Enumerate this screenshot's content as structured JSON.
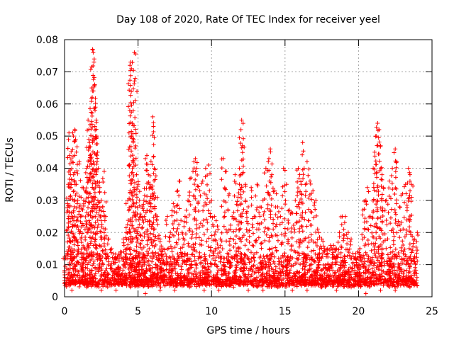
{
  "chart_data": {
    "type": "scatter",
    "title": "Day 108 of 2020, Rate Of TEC Index for receiver yeel",
    "xlabel": "GPS time / hours",
    "ylabel": "ROTI / TECUs",
    "xlim": [
      0,
      25
    ],
    "ylim": [
      0,
      0.08
    ],
    "x_ticks": [
      0,
      5,
      10,
      15,
      20,
      25
    ],
    "x_tick_labels": [
      "0",
      "5",
      "10",
      "15",
      "20",
      "25"
    ],
    "y_ticks": [
      0,
      0.01,
      0.02,
      0.03,
      0.04,
      0.05,
      0.06,
      0.07,
      0.08
    ],
    "y_tick_labels": [
      "0",
      "0.01",
      "0.02",
      "0.03",
      "0.04",
      "0.05",
      "0.06",
      "0.07",
      "0.08"
    ],
    "grid": true,
    "marker": "+",
    "color": "#ff0000",
    "series": [
      {
        "name": "ROTI",
        "points": [
          [
            0.0,
            0.005
          ],
          [
            0.1,
            0.012
          ],
          [
            0.2,
            0.029
          ],
          [
            0.25,
            0.035
          ],
          [
            0.3,
            0.051
          ],
          [
            0.35,
            0.044
          ],
          [
            0.4,
            0.038
          ],
          [
            0.5,
            0.025
          ],
          [
            0.55,
            0.051
          ],
          [
            0.6,
            0.05
          ],
          [
            0.7,
            0.052
          ],
          [
            0.75,
            0.049
          ],
          [
            0.8,
            0.035
          ],
          [
            0.9,
            0.03
          ],
          [
            1.0,
            0.042
          ],
          [
            1.1,
            0.025
          ],
          [
            1.2,
            0.034
          ],
          [
            1.3,
            0.03
          ],
          [
            1.4,
            0.033
          ],
          [
            1.5,
            0.04
          ],
          [
            1.6,
            0.055
          ],
          [
            1.65,
            0.049
          ],
          [
            1.7,
            0.048
          ],
          [
            1.75,
            0.042
          ],
          [
            1.8,
            0.043
          ],
          [
            1.85,
            0.065
          ],
          [
            1.9,
            0.077
          ],
          [
            1.95,
            0.076
          ],
          [
            2.0,
            0.073
          ],
          [
            2.05,
            0.066
          ],
          [
            2.1,
            0.059
          ],
          [
            2.15,
            0.055
          ],
          [
            2.2,
            0.05
          ],
          [
            2.3,
            0.04
          ],
          [
            2.4,
            0.034
          ],
          [
            2.5,
            0.03
          ],
          [
            2.6,
            0.028
          ],
          [
            2.7,
            0.039
          ],
          [
            2.8,
            0.025
          ],
          [
            3.0,
            0.018
          ],
          [
            3.2,
            0.015
          ],
          [
            3.5,
            0.012
          ],
          [
            3.8,
            0.014
          ],
          [
            4.0,
            0.018
          ],
          [
            4.2,
            0.02
          ],
          [
            4.3,
            0.03
          ],
          [
            4.4,
            0.041
          ],
          [
            4.45,
            0.072
          ],
          [
            4.5,
            0.073
          ],
          [
            4.55,
            0.071
          ],
          [
            4.6,
            0.054
          ],
          [
            4.7,
            0.049
          ],
          [
            4.75,
            0.076
          ],
          [
            4.8,
            0.068
          ],
          [
            4.9,
            0.038
          ],
          [
            5.0,
            0.035
          ],
          [
            5.1,
            0.03
          ],
          [
            5.2,
            0.025
          ],
          [
            5.3,
            0.028
          ],
          [
            5.4,
            0.03
          ],
          [
            5.5,
            0.043
          ],
          [
            5.6,
            0.044
          ],
          [
            5.7,
            0.038
          ],
          [
            5.8,
            0.035
          ],
          [
            5.9,
            0.034
          ],
          [
            6.0,
            0.056
          ],
          [
            6.05,
            0.053
          ],
          [
            6.1,
            0.04
          ],
          [
            6.2,
            0.031
          ],
          [
            6.3,
            0.025
          ],
          [
            6.5,
            0.018
          ],
          [
            6.7,
            0.015
          ],
          [
            7.0,
            0.025
          ],
          [
            7.2,
            0.02
          ],
          [
            7.4,
            0.029
          ],
          [
            7.5,
            0.028
          ],
          [
            7.7,
            0.033
          ],
          [
            7.8,
            0.036
          ],
          [
            8.0,
            0.02
          ],
          [
            8.2,
            0.025
          ],
          [
            8.4,
            0.03
          ],
          [
            8.6,
            0.037
          ],
          [
            8.8,
            0.042
          ],
          [
            8.9,
            0.043
          ],
          [
            9.0,
            0.04
          ],
          [
            9.2,
            0.033
          ],
          [
            9.4,
            0.036
          ],
          [
            9.6,
            0.04
          ],
          [
            9.8,
            0.041
          ],
          [
            10.0,
            0.03
          ],
          [
            10.2,
            0.025
          ],
          [
            10.4,
            0.022
          ],
          [
            10.6,
            0.018
          ],
          [
            10.8,
            0.043
          ],
          [
            11.0,
            0.039
          ],
          [
            11.2,
            0.032
          ],
          [
            11.4,
            0.025
          ],
          [
            11.6,
            0.038
          ],
          [
            11.8,
            0.031
          ],
          [
            11.9,
            0.035
          ],
          [
            12.0,
            0.052
          ],
          [
            12.05,
            0.055
          ],
          [
            12.1,
            0.047
          ],
          [
            12.3,
            0.035
          ],
          [
            12.5,
            0.028
          ],
          [
            12.7,
            0.034
          ],
          [
            12.9,
            0.025
          ],
          [
            13.1,
            0.035
          ],
          [
            13.3,
            0.028
          ],
          [
            13.5,
            0.03
          ],
          [
            13.7,
            0.04
          ],
          [
            13.9,
            0.043
          ],
          [
            14.0,
            0.046
          ],
          [
            14.1,
            0.038
          ],
          [
            14.3,
            0.033
          ],
          [
            14.5,
            0.028
          ],
          [
            14.7,
            0.025
          ],
          [
            14.9,
            0.04
          ],
          [
            15.1,
            0.035
          ],
          [
            15.3,
            0.027
          ],
          [
            15.5,
            0.026
          ],
          [
            15.7,
            0.03
          ],
          [
            15.9,
            0.04
          ],
          [
            16.0,
            0.038
          ],
          [
            16.1,
            0.035
          ],
          [
            16.2,
            0.048
          ],
          [
            16.3,
            0.04
          ],
          [
            16.5,
            0.042
          ],
          [
            16.7,
            0.036
          ],
          [
            16.9,
            0.033
          ],
          [
            17.1,
            0.03
          ],
          [
            17.3,
            0.02
          ],
          [
            17.5,
            0.018
          ],
          [
            17.7,
            0.015
          ],
          [
            17.9,
            0.015
          ],
          [
            18.1,
            0.016
          ],
          [
            18.3,
            0.016
          ],
          [
            18.5,
            0.015
          ],
          [
            18.7,
            0.02
          ],
          [
            18.9,
            0.025
          ],
          [
            19.1,
            0.025
          ],
          [
            19.3,
            0.02
          ],
          [
            19.5,
            0.018
          ],
          [
            19.7,
            0.012
          ],
          [
            19.9,
            0.01
          ],
          [
            20.1,
            0.015
          ],
          [
            20.3,
            0.027
          ],
          [
            20.5,
            0.03
          ],
          [
            20.6,
            0.034
          ],
          [
            20.8,
            0.025
          ],
          [
            21.0,
            0.04
          ],
          [
            21.1,
            0.045
          ],
          [
            21.2,
            0.05
          ],
          [
            21.3,
            0.054
          ],
          [
            21.4,
            0.052
          ],
          [
            21.5,
            0.047
          ],
          [
            21.6,
            0.038
          ],
          [
            21.7,
            0.034
          ],
          [
            21.9,
            0.03
          ],
          [
            22.1,
            0.036
          ],
          [
            22.3,
            0.04
          ],
          [
            22.5,
            0.046
          ],
          [
            22.6,
            0.042
          ],
          [
            22.8,
            0.028
          ],
          [
            23.0,
            0.032
          ],
          [
            23.2,
            0.035
          ],
          [
            23.4,
            0.04
          ],
          [
            23.5,
            0.038
          ],
          [
            23.6,
            0.035
          ],
          [
            23.8,
            0.018
          ],
          [
            24.0,
            0.02
          ],
          [
            0.5,
            0.002
          ],
          [
            1.5,
            0.003
          ],
          [
            2.5,
            0.002
          ],
          [
            3.5,
            0.002
          ],
          [
            4.5,
            0.003
          ],
          [
            5.5,
            0.001
          ],
          [
            6.5,
            0.002
          ],
          [
            7.5,
            0.002
          ],
          [
            8.5,
            0.003
          ],
          [
            9.5,
            0.002
          ],
          [
            10.5,
            0.002
          ],
          [
            11.5,
            0.003
          ],
          [
            12.5,
            0.002
          ],
          [
            13.5,
            0.002
          ],
          [
            14.5,
            0.003
          ],
          [
            15.5,
            0.002
          ],
          [
            16.5,
            0.002
          ],
          [
            17.5,
            0.003
          ],
          [
            18.5,
            0.002
          ],
          [
            19.5,
            0.003
          ],
          [
            20.5,
            0.001
          ],
          [
            21.5,
            0.002
          ],
          [
            22.5,
            0.002
          ],
          [
            23.5,
            0.003
          ]
        ]
      }
    ],
    "dense_fill": {
      "description": "dense cloud of + markers",
      "x_range": [
        0,
        24
      ],
      "y_floor": 0.003,
      "y_typical_top": 0.012
    }
  }
}
